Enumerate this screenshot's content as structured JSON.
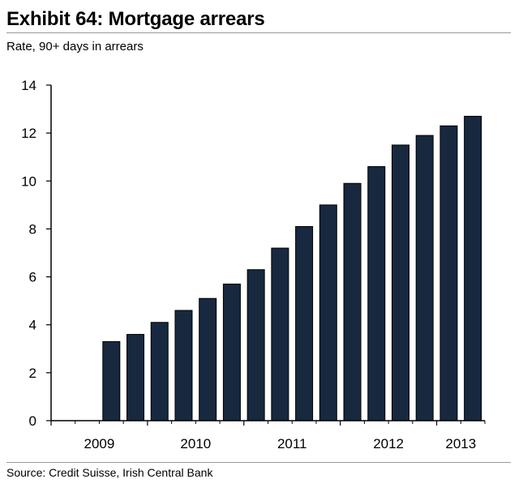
{
  "header": {
    "title": "Exhibit 64: Mortgage arrears",
    "subtitle": "Rate, 90+ days in arrears"
  },
  "footer": {
    "source": "Source: Credit Suisse, Irish Central Bank"
  },
  "chart_data": {
    "type": "bar",
    "title": "Exhibit 64: Mortgage arrears",
    "subtitle": "Rate, 90+ days in arrears",
    "xlabel": "",
    "ylabel": "",
    "ylim": [
      0,
      14
    ],
    "yticks": [
      0,
      2,
      4,
      6,
      8,
      10,
      12,
      14
    ],
    "xtick_labels": [
      "2009",
      "2010",
      "2011",
      "2012",
      "2013"
    ],
    "grid": false,
    "bar_color": "#17283f",
    "categories": [
      "2009 Q1",
      "2009 Q2",
      "2009 Q3",
      "2009 Q4",
      "2010 Q1",
      "2010 Q2",
      "2010 Q3",
      "2010 Q4",
      "2011 Q1",
      "2011 Q2",
      "2011 Q3",
      "2011 Q4",
      "2012 Q1",
      "2012 Q2",
      "2012 Q3",
      "2012 Q4",
      "2013 Q1",
      "2013 Q2"
    ],
    "values": [
      null,
      null,
      3.3,
      3.6,
      4.1,
      4.6,
      5.1,
      5.7,
      6.3,
      7.2,
      8.1,
      9.0,
      9.9,
      10.6,
      11.5,
      11.9,
      12.3,
      12.7
    ]
  }
}
